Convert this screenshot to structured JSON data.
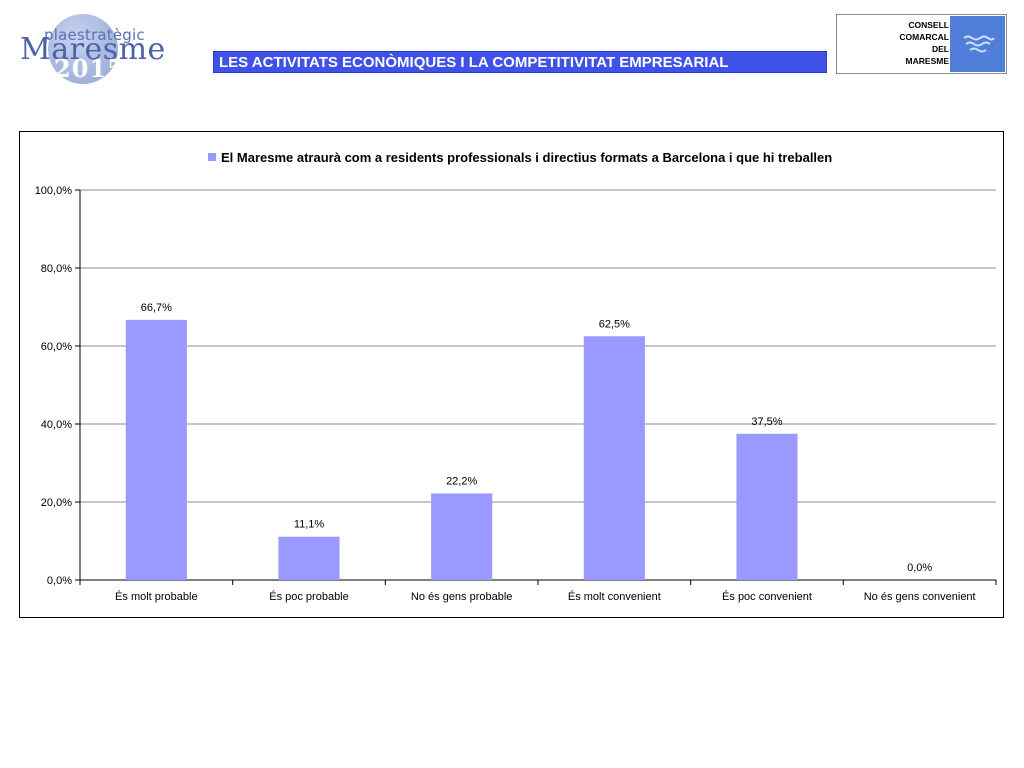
{
  "header": {
    "logo_left": {
      "line1": "plaestratègic",
      "line2": "Maresme",
      "line3": "2015"
    },
    "title": "LES ACTIVITATS ECONÒMIQUES I LA COMPETITIVITAT EMPRESARIAL",
    "logo_right": {
      "lines": [
        "CONSELL",
        "COMARCAL",
        "DEL",
        "MARESME"
      ]
    }
  },
  "chart_data": {
    "type": "bar",
    "title": "",
    "xlabel": "",
    "ylabel": "",
    "legend_position": "top",
    "grid": true,
    "ylim": [
      0,
      100
    ],
    "yticks": [
      "0,0%",
      "20,0%",
      "40,0%",
      "60,0%",
      "80,0%",
      "100,0%"
    ],
    "categories": [
      "És molt probable",
      "És poc probable",
      "No és gens probable",
      "És molt convenient",
      "És poc convenient",
      "No és gens convenient"
    ],
    "series": [
      {
        "name": "El Maresme atraurà com a residents professionals i directius formats a Barcelona i que hi treballen",
        "values": [
          66.7,
          11.1,
          22.2,
          62.5,
          37.5,
          0.0
        ],
        "labels": [
          "66,7%",
          "11,1%",
          "22,2%",
          "62,5%",
          "37,5%",
          "0,0%"
        ],
        "color": "#9999ff"
      }
    ]
  }
}
